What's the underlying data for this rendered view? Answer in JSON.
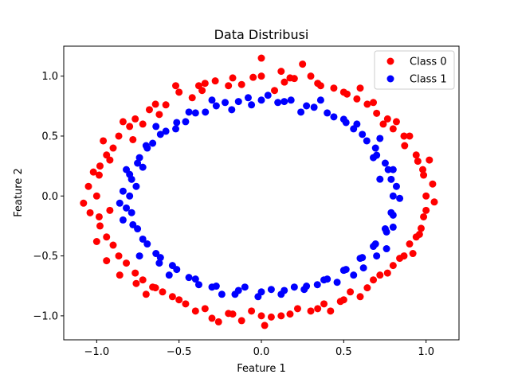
{
  "chart_data": {
    "type": "scatter",
    "title": "Data Distribusi",
    "xlabel": "Feature 1",
    "ylabel": "Feature 2",
    "xlim": [
      -1.2,
      1.2
    ],
    "ylim": [
      -1.2,
      1.25
    ],
    "x_ticks": [
      -1.0,
      -0.5,
      0.0,
      0.5,
      1.0
    ],
    "y_ticks": [
      -1.0,
      -0.5,
      0.0,
      0.5,
      1.0
    ],
    "x_tick_labels": [
      "−1.0",
      "−0.5",
      "0.0",
      "0.5",
      "1.0"
    ],
    "y_tick_labels": [
      "−1.0",
      "−0.5",
      "0.0",
      "0.5",
      "1.0"
    ],
    "grid": false,
    "legend_position": "top-right",
    "series": [
      {
        "name": "Class 0",
        "color": "#ff0000",
        "points": [
          [
            1.0,
            0.0
          ],
          [
            0.985,
            0.174
          ],
          [
            0.94,
            0.342
          ],
          [
            0.866,
            0.5
          ],
          [
            0.766,
            0.643
          ],
          [
            0.643,
            0.766
          ],
          [
            0.5,
            0.866
          ],
          [
            0.342,
            0.94
          ],
          [
            0.174,
            0.985
          ],
          [
            0.0,
            1.0
          ],
          [
            -0.174,
            0.985
          ],
          [
            -0.342,
            0.94
          ],
          [
            -0.5,
            0.866
          ],
          [
            -0.643,
            0.766
          ],
          [
            -0.766,
            0.643
          ],
          [
            -0.866,
            0.5
          ],
          [
            -0.94,
            0.342
          ],
          [
            -0.985,
            0.174
          ],
          [
            -1.0,
            0.0
          ],
          [
            -0.985,
            -0.174
          ],
          [
            -0.94,
            -0.342
          ],
          [
            -0.866,
            -0.5
          ],
          [
            -0.766,
            -0.643
          ],
          [
            -0.643,
            -0.766
          ],
          [
            -0.5,
            -0.866
          ],
          [
            -0.342,
            -0.94
          ],
          [
            -0.174,
            -0.985
          ],
          [
            0.0,
            -1.0
          ],
          [
            0.174,
            -0.985
          ],
          [
            0.342,
            -0.94
          ],
          [
            0.5,
            -0.866
          ],
          [
            0.643,
            -0.766
          ],
          [
            0.766,
            -0.643
          ],
          [
            0.866,
            -0.5
          ],
          [
            0.94,
            -0.342
          ],
          [
            0.985,
            -0.174
          ],
          [
            1.04,
            0.1
          ],
          [
            0.95,
            0.29
          ],
          [
            0.87,
            0.42
          ],
          [
            0.8,
            0.56
          ],
          [
            0.7,
            0.69
          ],
          [
            0.58,
            0.81
          ],
          [
            0.44,
            0.9
          ],
          [
            0.3,
            1.0
          ],
          [
            0.12,
            1.04
          ],
          [
            -0.05,
            0.99
          ],
          [
            -0.2,
            0.92
          ],
          [
            -0.36,
            0.88
          ],
          [
            -0.52,
            0.92
          ],
          [
            -0.68,
            0.72
          ],
          [
            -0.8,
            0.58
          ],
          [
            -0.9,
            0.4
          ],
          [
            -0.98,
            0.25
          ],
          [
            -1.05,
            0.08
          ],
          [
            -1.08,
            -0.06
          ],
          [
            -0.98,
            -0.25
          ],
          [
            -0.9,
            -0.41
          ],
          [
            -0.82,
            -0.56
          ],
          [
            -0.72,
            -0.7
          ],
          [
            -0.6,
            -0.8
          ],
          [
            -0.46,
            -0.9
          ],
          [
            -0.3,
            -1.02
          ],
          [
            -0.12,
            -1.04
          ],
          [
            0.06,
            -1.01
          ],
          [
            0.22,
            -0.94
          ],
          [
            0.38,
            -0.9
          ],
          [
            0.54,
            -0.8
          ],
          [
            0.68,
            -0.7
          ],
          [
            0.8,
            -0.58
          ],
          [
            0.9,
            -0.4
          ],
          [
            0.97,
            -0.27
          ],
          [
            1.05,
            -0.05
          ],
          [
            0.25,
            1.1
          ],
          [
            0.0,
            1.15
          ],
          [
            -0.12,
            0.93
          ],
          [
            0.14,
            0.95
          ],
          [
            -0.42,
            0.82
          ],
          [
            -0.62,
            0.68
          ],
          [
            -0.84,
            0.62
          ],
          [
            -0.92,
            0.3
          ],
          [
            -1.02,
            0.2
          ],
          [
            -0.92,
            -0.12
          ],
          [
            -0.76,
            -0.73
          ],
          [
            -0.54,
            -0.84
          ],
          [
            -0.2,
            -0.98
          ],
          [
            0.3,
            -0.96
          ],
          [
            0.48,
            -0.88
          ],
          [
            0.72,
            -0.66
          ],
          [
            0.92,
            -0.48
          ],
          [
            1.0,
            -0.12
          ],
          [
            0.98,
            0.22
          ],
          [
            0.9,
            0.5
          ],
          [
            0.82,
            0.62
          ],
          [
            0.68,
            0.78
          ],
          [
            0.52,
            0.85
          ],
          [
            0.36,
            0.92
          ],
          [
            0.08,
            0.88
          ],
          [
            -0.28,
            0.96
          ],
          [
            -0.58,
            0.76
          ],
          [
            -0.72,
            0.6
          ],
          [
            -0.96,
            0.46
          ],
          [
            -1.0,
            -0.38
          ],
          [
            -0.86,
            -0.66
          ],
          [
            -0.66,
            -0.76
          ],
          [
            -0.4,
            -0.96
          ],
          [
            -0.06,
            -0.96
          ],
          [
            0.12,
            -1.0
          ],
          [
            0.42,
            -0.96
          ],
          [
            0.6,
            -0.84
          ],
          [
            0.84,
            -0.52
          ],
          [
            0.96,
            -0.32
          ],
          [
            1.02,
            0.3
          ],
          [
            0.74,
            0.6
          ],
          [
            0.6,
            0.9
          ],
          [
            0.2,
            0.98
          ],
          [
            -0.38,
            0.92
          ],
          [
            -0.78,
            0.47
          ],
          [
            -1.04,
            -0.14
          ],
          [
            -0.94,
            -0.54
          ],
          [
            -0.7,
            -0.82
          ],
          [
            -0.26,
            -1.05
          ],
          [
            0.02,
            -1.08
          ]
        ]
      },
      {
        "name": "Class 1",
        "color": "#0000ff",
        "points": [
          [
            0.8,
            0.0
          ],
          [
            0.788,
            0.139
          ],
          [
            0.752,
            0.274
          ],
          [
            0.693,
            0.4
          ],
          [
            0.613,
            0.514
          ],
          [
            0.514,
            0.613
          ],
          [
            0.4,
            0.693
          ],
          [
            0.274,
            0.752
          ],
          [
            0.139,
            0.788
          ],
          [
            0.0,
            0.8
          ],
          [
            -0.139,
            0.788
          ],
          [
            -0.274,
            0.752
          ],
          [
            -0.4,
            0.693
          ],
          [
            -0.514,
            0.613
          ],
          [
            -0.613,
            0.514
          ],
          [
            -0.693,
            0.4
          ],
          [
            -0.752,
            0.274
          ],
          [
            -0.788,
            0.139
          ],
          [
            -0.8,
            0.0
          ],
          [
            -0.788,
            -0.139
          ],
          [
            -0.752,
            -0.274
          ],
          [
            -0.693,
            -0.4
          ],
          [
            -0.613,
            -0.514
          ],
          [
            -0.514,
            -0.613
          ],
          [
            -0.4,
            -0.693
          ],
          [
            -0.274,
            -0.752
          ],
          [
            -0.139,
            -0.788
          ],
          [
            0.0,
            -0.8
          ],
          [
            0.139,
            -0.788
          ],
          [
            0.274,
            -0.752
          ],
          [
            0.4,
            -0.693
          ],
          [
            0.514,
            -0.613
          ],
          [
            0.613,
            -0.514
          ],
          [
            0.693,
            -0.4
          ],
          [
            0.752,
            -0.274
          ],
          [
            0.788,
            -0.139
          ],
          [
            0.82,
            0.08
          ],
          [
            0.77,
            0.22
          ],
          [
            0.7,
            0.34
          ],
          [
            0.64,
            0.46
          ],
          [
            0.56,
            0.56
          ],
          [
            0.44,
            0.66
          ],
          [
            0.32,
            0.74
          ],
          [
            0.18,
            0.8
          ],
          [
            0.04,
            0.84
          ],
          [
            -0.08,
            0.82
          ],
          [
            -0.22,
            0.78
          ],
          [
            -0.34,
            0.7
          ],
          [
            -0.46,
            0.62
          ],
          [
            -0.58,
            0.54
          ],
          [
            -0.66,
            0.44
          ],
          [
            -0.74,
            0.32
          ],
          [
            -0.8,
            0.18
          ],
          [
            -0.84,
            0.04
          ],
          [
            -0.82,
            -0.1
          ],
          [
            -0.78,
            -0.24
          ],
          [
            -0.72,
            -0.36
          ],
          [
            -0.64,
            -0.48
          ],
          [
            -0.54,
            -0.58
          ],
          [
            -0.44,
            -0.68
          ],
          [
            -0.3,
            -0.76
          ],
          [
            -0.16,
            -0.82
          ],
          [
            -0.02,
            -0.84
          ],
          [
            0.12,
            -0.82
          ],
          [
            0.26,
            -0.78
          ],
          [
            0.38,
            -0.7
          ],
          [
            0.5,
            -0.62
          ],
          [
            0.6,
            -0.52
          ],
          [
            0.68,
            -0.42
          ],
          [
            0.76,
            -0.3
          ],
          [
            0.8,
            -0.16
          ],
          [
            0.84,
            -0.02
          ],
          [
            0.8,
            0.22
          ],
          [
            0.72,
            0.48
          ],
          [
            0.5,
            0.64
          ],
          [
            0.36,
            0.8
          ],
          [
            0.1,
            0.78
          ],
          [
            -0.06,
            0.76
          ],
          [
            -0.3,
            0.8
          ],
          [
            -0.52,
            0.56
          ],
          [
            -0.7,
            0.42
          ],
          [
            -0.82,
            0.22
          ],
          [
            -0.76,
            0.08
          ],
          [
            -0.84,
            -0.2
          ],
          [
            -0.74,
            -0.5
          ],
          [
            -0.56,
            -0.66
          ],
          [
            -0.38,
            -0.74
          ],
          [
            -0.1,
            -0.76
          ],
          [
            0.06,
            -0.78
          ],
          [
            0.34,
            -0.74
          ],
          [
            0.56,
            -0.66
          ],
          [
            0.7,
            -0.5
          ],
          [
            0.76,
            -0.44
          ],
          [
            0.72,
            0.14
          ],
          [
            0.68,
            0.32
          ],
          [
            0.58,
            0.6
          ],
          [
            0.24,
            0.7
          ],
          [
            -0.18,
            0.72
          ],
          [
            -0.44,
            0.7
          ],
          [
            -0.64,
            0.58
          ],
          [
            -0.72,
            0.24
          ],
          [
            -0.86,
            -0.06
          ],
          [
            -0.62,
            -0.56
          ],
          [
            -0.24,
            -0.82
          ],
          [
            0.2,
            -0.76
          ],
          [
            0.46,
            -0.72
          ],
          [
            0.62,
            -0.6
          ],
          [
            0.8,
            -0.26
          ]
        ]
      }
    ]
  }
}
